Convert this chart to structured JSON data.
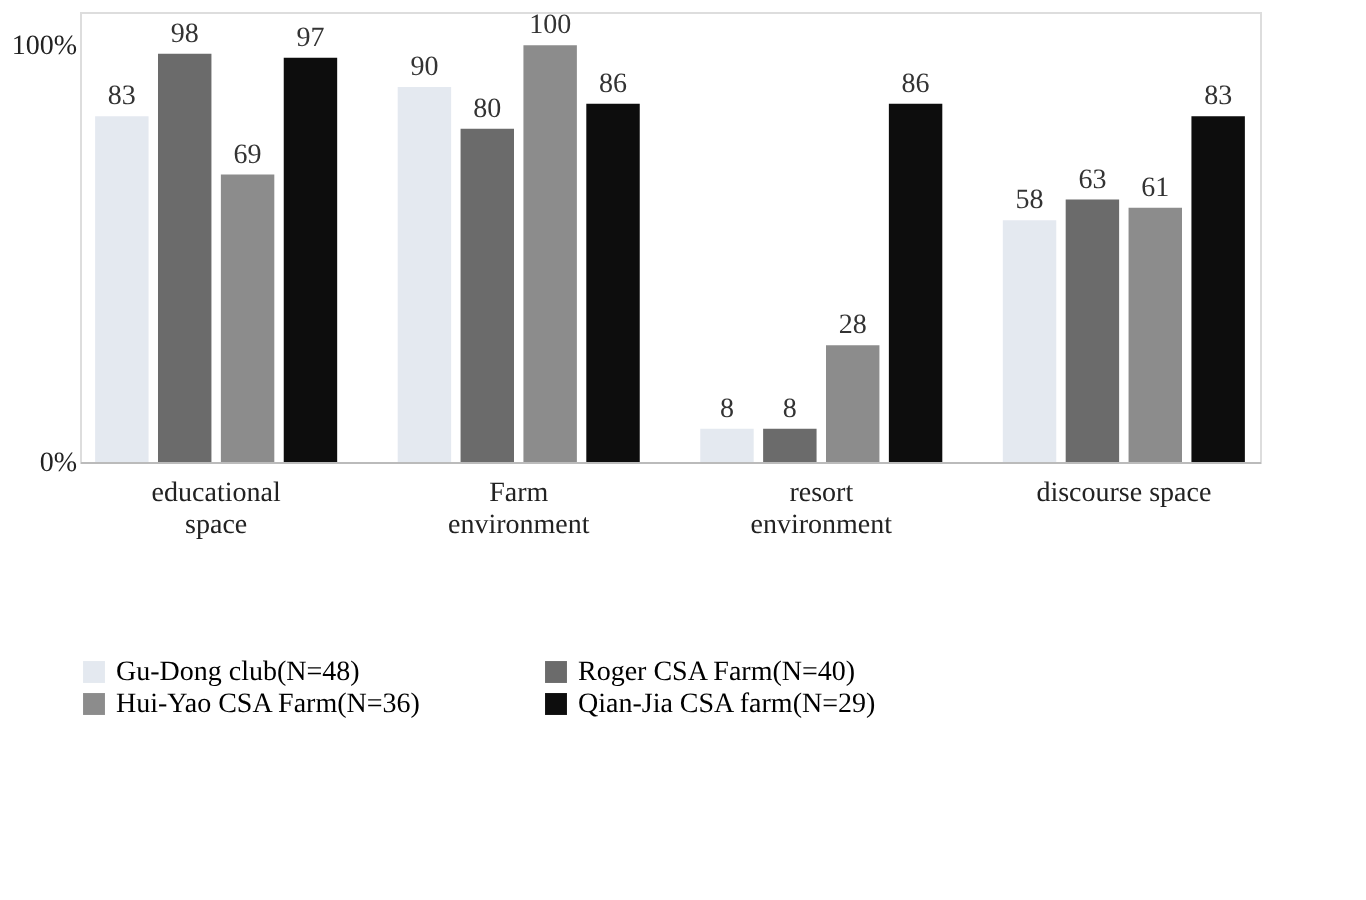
{
  "chart_data": {
    "type": "bar",
    "categories": [
      "educational\nspace",
      "Farm\nenvironment",
      "resort\nenvironment",
      "discourse space"
    ],
    "series": [
      {
        "name": "Gu-Dong club(N=48)",
        "color": "#e4e9f0",
        "values": [
          83,
          90,
          8,
          58
        ]
      },
      {
        "name": "Roger CSA Farm(N=40)",
        "color": "#6b6b6b",
        "values": [
          98,
          80,
          8,
          63
        ]
      },
      {
        "name": "Hui-Yao CSA Farm(N=36)",
        "color": "#8c8c8c",
        "values": [
          69,
          100,
          28,
          61
        ]
      },
      {
        "name": "Qian-Jia CSA farm(N=29)",
        "color": "#0d0d0d",
        "values": [
          97,
          86,
          86,
          83
        ]
      }
    ],
    "ylim": [
      0,
      108
    ],
    "yticks": [
      {
        "value": 0,
        "label": "0%"
      },
      {
        "value": 100,
        "label": "100%"
      }
    ],
    "grid": false,
    "legend": "bottom",
    "data_labels": true
  }
}
